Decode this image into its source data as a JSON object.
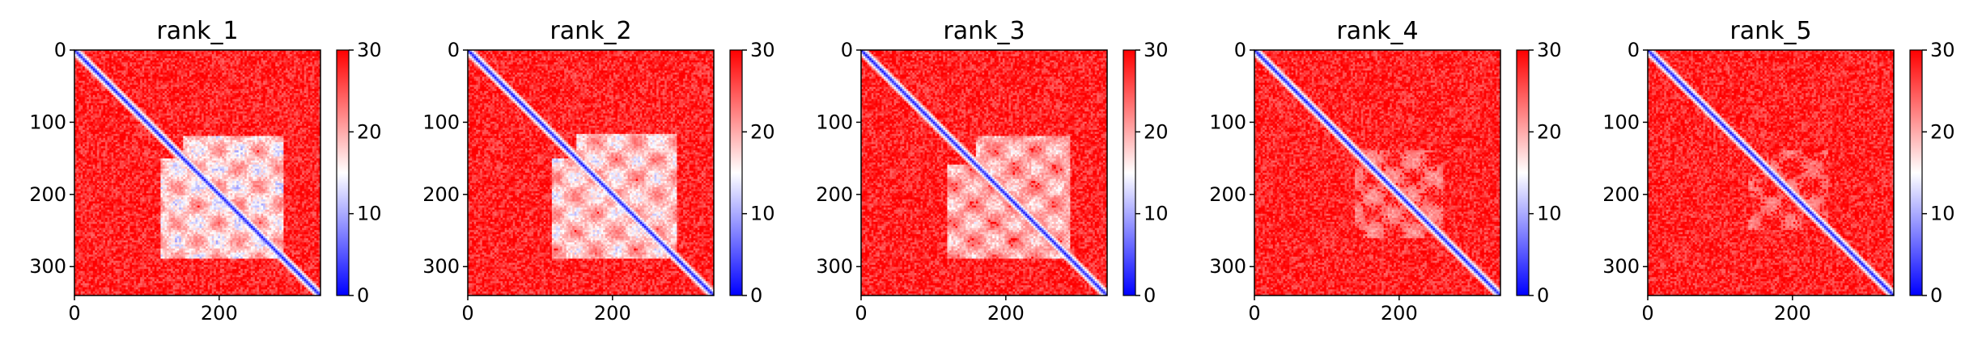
{
  "chart_data": [
    {
      "type": "heatmap",
      "title": "rank_1",
      "x_ticks": [
        "0",
        "200"
      ],
      "y_ticks": [
        "0",
        "100",
        "200",
        "300"
      ],
      "xlim": [
        0,
        340
      ],
      "ylim": [
        340,
        0
      ],
      "colorbar": {
        "min": 0,
        "max": 30,
        "ticks": [
          "0",
          "10",
          "20",
          "30"
        ],
        "colormap": "bwr",
        "colors": [
          "#0000ff",
          "#ffffff",
          "#ff0000"
        ]
      },
      "low_region": {
        "x": [
          120,
          290
        ],
        "y": [
          150,
          290
        ],
        "strength": 0.75
      }
    },
    {
      "type": "heatmap",
      "title": "rank_2",
      "x_ticks": [
        "0",
        "200"
      ],
      "y_ticks": [
        "0",
        "100",
        "200",
        "300"
      ],
      "xlim": [
        0,
        340
      ],
      "ylim": [
        340,
        0
      ],
      "colorbar": {
        "min": 0,
        "max": 30,
        "ticks": [
          "0",
          "10",
          "20",
          "30"
        ],
        "colormap": "bwr",
        "colors": [
          "#0000ff",
          "#ffffff",
          "#ff0000"
        ]
      },
      "low_region": {
        "x": [
          115,
          290
        ],
        "y": [
          150,
          290
        ],
        "strength": 0.7
      }
    },
    {
      "type": "heatmap",
      "title": "rank_3",
      "x_ticks": [
        "0",
        "200"
      ],
      "y_ticks": [
        "0",
        "100",
        "200",
        "300"
      ],
      "xlim": [
        0,
        340
      ],
      "ylim": [
        340,
        0
      ],
      "colorbar": {
        "min": 0,
        "max": 30,
        "ticks": [
          "0",
          "10",
          "20",
          "30"
        ],
        "colormap": "bwr",
        "colors": [
          "#0000ff",
          "#ffffff",
          "#ff0000"
        ]
      },
      "low_region": {
        "x": [
          120,
          290
        ],
        "y": [
          160,
          290
        ],
        "strength": 0.6
      }
    },
    {
      "type": "heatmap",
      "title": "rank_4",
      "x_ticks": [
        "0",
        "200"
      ],
      "y_ticks": [
        "0",
        "100",
        "200",
        "300"
      ],
      "xlim": [
        0,
        340
      ],
      "ylim": [
        340,
        0
      ],
      "colorbar": {
        "min": 0,
        "max": 30,
        "ticks": [
          "0",
          "10",
          "20",
          "30"
        ],
        "colormap": "bwr",
        "colors": [
          "#0000ff",
          "#ffffff",
          "#ff0000"
        ]
      },
      "low_region": {
        "x": [
          140,
          260
        ],
        "y": [
          150,
          250
        ],
        "strength": 0.4
      }
    },
    {
      "type": "heatmap",
      "title": "rank_5",
      "x_ticks": [
        "0",
        "200"
      ],
      "y_ticks": [
        "0",
        "100",
        "200",
        "300"
      ],
      "xlim": [
        0,
        340
      ],
      "ylim": [
        340,
        0
      ],
      "colorbar": {
        "min": 0,
        "max": 30,
        "ticks": [
          "0",
          "10",
          "20",
          "30"
        ],
        "colormap": "bwr",
        "colors": [
          "#0000ff",
          "#ffffff",
          "#ff0000"
        ]
      },
      "low_region": {
        "x": [
          140,
          250
        ],
        "y": [
          160,
          250
        ],
        "strength": 0.35
      }
    }
  ]
}
